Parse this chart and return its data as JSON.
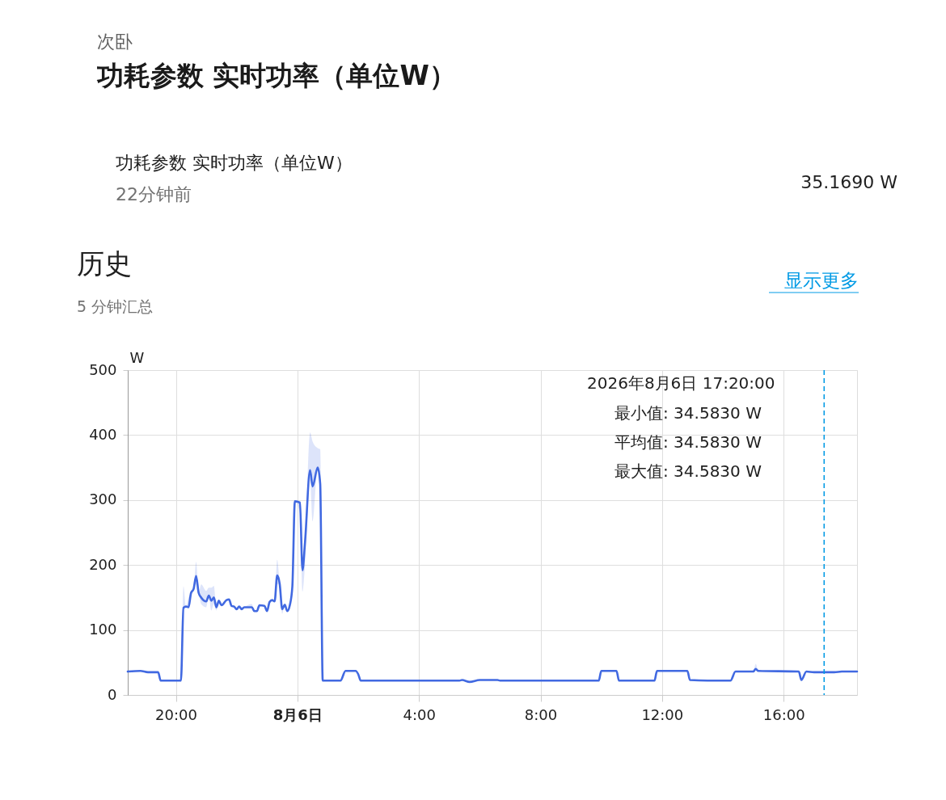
{
  "chart_data": {
    "type": "line",
    "title": "功耗参数 实时功率（单位W）",
    "subtitle": "次卧",
    "ylabel": "W",
    "annotations": [
      "功耗参数 实时功率（单位W）",
      "22分钟前",
      "35.1690 W",
      "历史",
      "5 分钟汇总",
      "显示更多",
      "2026年8月6日 17:20:00",
      "最小值: 34.5830 W",
      "平均值: 34.5830 W",
      "最大值: 34.5830 W"
    ],
    "x": [
      "2026-08-05T18:25",
      "2026-08-05T18:50",
      "2026-08-05T19:05",
      "2026-08-05T19:25",
      "2026-08-05T19:30",
      "2026-08-05T20:10",
      "2026-08-05T20:15",
      "2026-08-05T20:20",
      "2026-08-05T20:25",
      "2026-08-05T20:30",
      "2026-08-05T20:35",
      "2026-08-05T20:40",
      "2026-08-05T20:45",
      "2026-08-05T20:50",
      "2026-08-05T21:00",
      "2026-08-05T21:05",
      "2026-08-05T21:10",
      "2026-08-05T21:15",
      "2026-08-05T21:20",
      "2026-08-05T21:25",
      "2026-08-05T21:30",
      "2026-08-05T21:40",
      "2026-08-05T21:45",
      "2026-08-05T21:50",
      "2026-08-05T21:55",
      "2026-08-05T22:00",
      "2026-08-05T22:05",
      "2026-08-05T22:10",
      "2026-08-05T22:15",
      "2026-08-05T22:30",
      "2026-08-05T22:35",
      "2026-08-05T22:40",
      "2026-08-05T22:45",
      "2026-08-05T22:55",
      "2026-08-05T23:00",
      "2026-08-05T23:05",
      "2026-08-05T23:10",
      "2026-08-05T23:15",
      "2026-08-05T23:20",
      "2026-08-05T23:25",
      "2026-08-05T23:30",
      "2026-08-05T23:35",
      "2026-08-05T23:40",
      "2026-08-05T23:45",
      "2026-08-05T23:50",
      "2026-08-05T23:55",
      "2026-08-06T00:05",
      "2026-08-06T00:10",
      "2026-08-06T00:15",
      "2026-08-06T00:25",
      "2026-08-06T00:30",
      "2026-08-06T00:40",
      "2026-08-06T00:45",
      "2026-08-06T00:50",
      "2026-08-06T01:25",
      "2026-08-06T01:35",
      "2026-08-06T01:55",
      "2026-08-06T02:00",
      "2026-08-06T02:05",
      "2026-08-06T05:20",
      "2026-08-06T05:25",
      "2026-08-06T05:40",
      "2026-08-06T06:00",
      "2026-08-06T06:35",
      "2026-08-06T06:40",
      "2026-08-06T09:55",
      "2026-08-06T10:00",
      "2026-08-06T10:30",
      "2026-08-06T10:35",
      "2026-08-06T11:45",
      "2026-08-06T11:50",
      "2026-08-06T12:35",
      "2026-08-06T12:50",
      "2026-08-06T12:55",
      "2026-08-06T13:30",
      "2026-08-06T14:15",
      "2026-08-06T14:25",
      "2026-08-06T15:00",
      "2026-08-06T15:05",
      "2026-08-06T15:10",
      "2026-08-06T16:30",
      "2026-08-06T16:35",
      "2026-08-06T16:45",
      "2026-08-06T17:00",
      "2026-08-06T17:20",
      "2026-08-06T17:40",
      "2026-08-06T17:55",
      "2026-08-06T18:25"
    ],
    "series": [
      {
        "color": "#4169e1",
        "values": [
          36,
          37,
          35,
          35,
          22,
          22,
          134,
          136,
          135,
          157,
          163,
          183,
          157,
          150,
          144,
          153,
          145,
          150,
          135,
          145,
          138,
          146,
          147,
          137,
          136,
          132,
          136,
          132,
          135,
          135,
          129,
          129,
          138,
          137,
          129,
          143,
          146,
          144,
          184,
          171,
          132,
          139,
          129,
          138,
          167,
          298,
          296,
          192,
          235,
          346,
          321,
          350,
          325,
          22,
          22,
          37,
          37,
          32,
          22,
          22,
          23,
          20,
          23,
          23,
          22,
          22,
          37,
          37,
          22,
          22,
          37,
          37,
          37,
          23,
          22,
          22,
          36,
          36,
          40,
          37,
          36,
          23,
          36,
          35,
          35,
          35,
          36,
          36
        ],
        "lower": [
          36,
          37,
          35,
          35,
          22,
          22,
          130,
          136,
          135,
          157,
          163,
          170,
          157,
          140,
          135,
          153,
          130,
          140,
          130,
          145,
          138,
          146,
          147,
          137,
          136,
          132,
          136,
          132,
          135,
          135,
          129,
          129,
          138,
          137,
          129,
          143,
          146,
          144,
          170,
          171,
          125,
          139,
          129,
          138,
          167,
          298,
          280,
          159,
          200,
          330,
          267,
          350,
          325,
          22,
          22,
          37,
          37,
          32,
          22,
          22,
          23,
          20,
          23,
          23,
          22,
          22,
          37,
          37,
          22,
          22,
          37,
          37,
          37,
          23,
          22,
          22,
          36,
          36,
          40,
          37,
          36,
          23,
          36,
          35,
          35,
          35,
          36,
          36
        ],
        "upper": [
          36,
          37,
          35,
          35,
          22,
          22,
          167,
          136,
          150,
          157,
          163,
          205,
          157,
          170,
          160,
          165,
          165,
          168,
          135,
          145,
          138,
          146,
          147,
          137,
          136,
          132,
          136,
          132,
          135,
          140,
          129,
          129,
          138,
          137,
          129,
          143,
          146,
          144,
          208,
          171,
          132,
          139,
          129,
          138,
          167,
          300,
          296,
          210,
          235,
          404,
          390,
          380,
          378,
          22,
          22,
          37,
          37,
          32,
          22,
          22,
          23,
          20,
          23,
          23,
          22,
          22,
          37,
          37,
          22,
          22,
          37,
          37,
          37,
          23,
          22,
          22,
          36,
          36,
          48,
          37,
          36,
          23,
          36,
          35,
          35,
          35,
          36,
          36
        ]
      }
    ],
    "xlim": [
      "2026-08-05T18:25",
      "2026-08-06T18:25"
    ],
    "xticks": [
      {
        "value": "2026-08-05T20:00",
        "label": "20:00"
      },
      {
        "value": "2026-08-06T00:00",
        "label": "8月6日"
      },
      {
        "value": "2026-08-06T04:00",
        "label": "4:00"
      },
      {
        "value": "2026-08-06T08:00",
        "label": "8:00"
      },
      {
        "value": "2026-08-06T12:00",
        "label": "12:00"
      },
      {
        "value": "2026-08-06T16:00",
        "label": "16:00"
      }
    ],
    "ylim": [
      0,
      500
    ],
    "yticks": [
      0,
      100,
      200,
      300,
      400,
      500
    ],
    "grid": true,
    "ref_lines": [
      {
        "axis": "x",
        "value": "2026-08-06T17:20",
        "color": "#039be5",
        "line_style": "dashed"
      }
    ]
  }
}
